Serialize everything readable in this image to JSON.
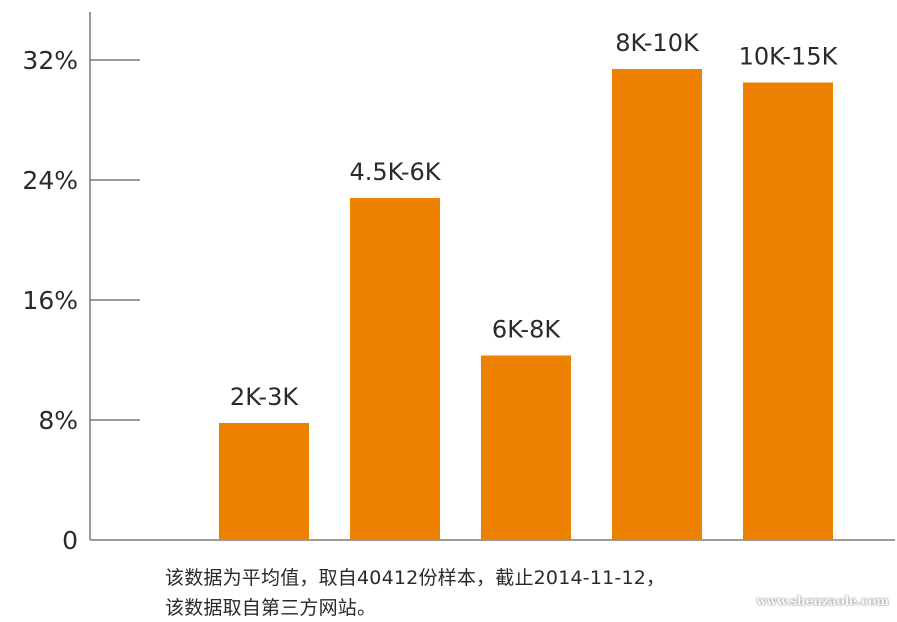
{
  "chart_data": {
    "type": "bar",
    "categories": [
      "",
      "2K-3K",
      "4.5K-6K",
      "6K-8K",
      "8K-10K",
      "10K-15K"
    ],
    "values": [
      null,
      7.8,
      22.8,
      12.3,
      31.4,
      30.5
    ],
    "y_ticks": [
      "0",
      "8%",
      "16%",
      "24%",
      "32%"
    ],
    "y_tick_values": [
      0,
      8,
      16,
      24,
      32
    ],
    "ylim": [
      0,
      32
    ],
    "grid": false,
    "bar_color": "#ee8200",
    "axis_color": "#7a7a7a"
  },
  "notes": {
    "line1": "该数据为平均值，取自40412份样本，截止2014-11-12，",
    "line2": "该数据取自第三方网站。"
  },
  "watermark": "www.shenzaole.com"
}
